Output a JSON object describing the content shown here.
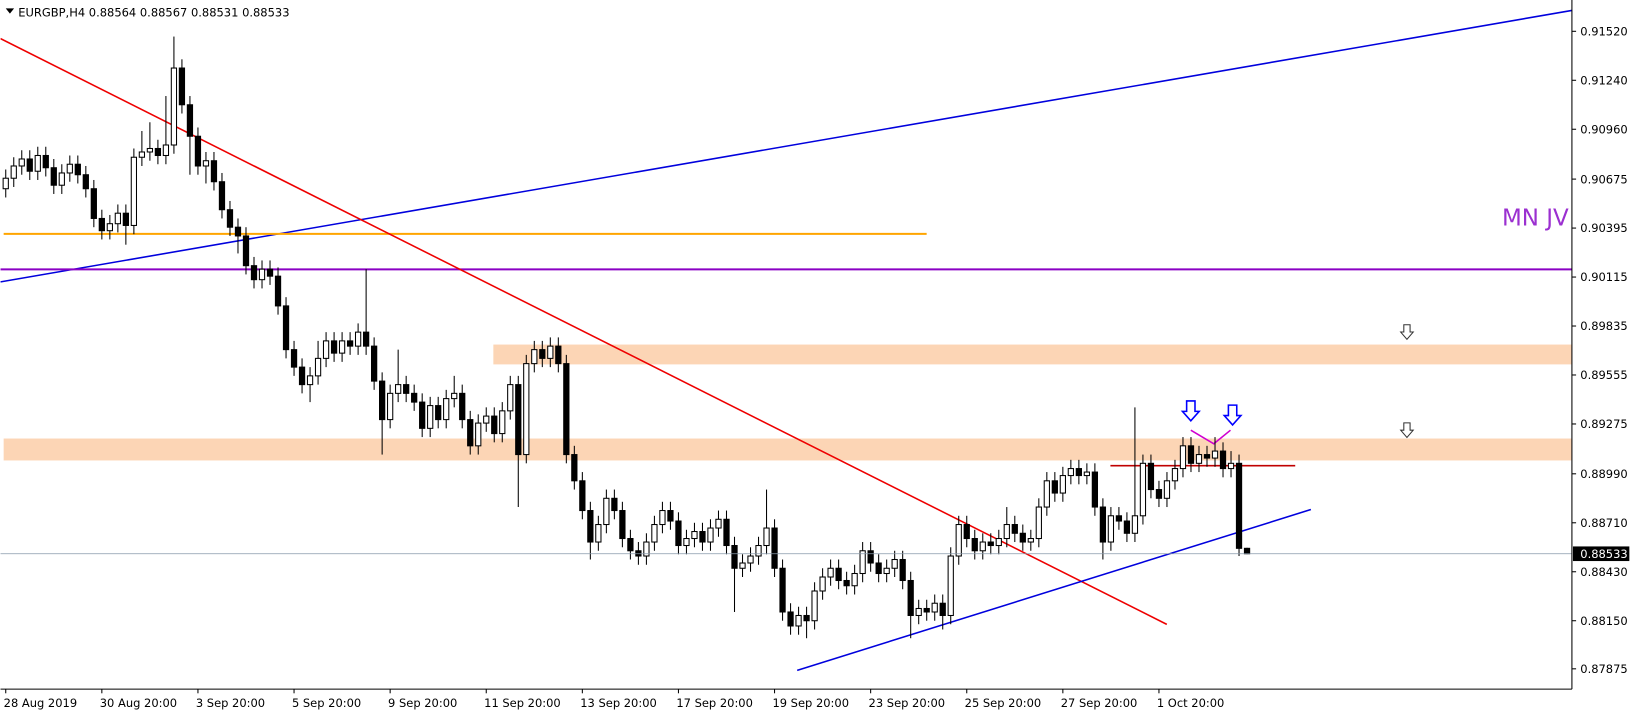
{
  "chart_data": {
    "type": "candlestick",
    "title": "EURGBP,H4",
    "annotation": "MN JV",
    "categories": [
      "28 Aug 2019",
      null,
      null,
      null,
      null,
      null,
      null,
      null,
      null,
      null,
      null,
      null,
      "30 Aug 20:00",
      null,
      null,
      null,
      null,
      null,
      null,
      null,
      null,
      null,
      null,
      null,
      "3 Sep 20:00",
      null,
      null,
      null,
      null,
      null,
      null,
      null,
      null,
      null,
      null,
      null,
      "5 Sep 20:00",
      null,
      null,
      null,
      null,
      null,
      null,
      null,
      null,
      null,
      null,
      null,
      "9 Sep 20:00",
      null,
      null,
      null,
      null,
      null,
      null,
      null,
      null,
      null,
      null,
      null,
      "11 Sep 20:00",
      null,
      null,
      null,
      null,
      null,
      null,
      null,
      null,
      null,
      null,
      null,
      "13 Sep 20:00",
      null,
      null,
      null,
      null,
      null,
      null,
      null,
      null,
      null,
      null,
      null,
      "17 Sep 20:00",
      null,
      null,
      null,
      null,
      null,
      null,
      null,
      null,
      null,
      null,
      null,
      "19 Sep 20:00",
      null,
      null,
      null,
      null,
      null,
      null,
      null,
      null,
      null,
      null,
      null,
      "23 Sep 20:00",
      null,
      null,
      null,
      null,
      null,
      null,
      null,
      null,
      null,
      null,
      null,
      "25 Sep 20:00",
      null,
      null,
      null,
      null,
      null,
      null,
      null,
      null,
      null,
      null,
      null,
      "27 Sep 20:00",
      null,
      null,
      null,
      null,
      null,
      null,
      null,
      null,
      null,
      null,
      null,
      "1 Oct 20:00",
      null,
      null,
      null,
      null,
      null,
      null,
      null,
      null,
      null,
      null,
      null
    ],
    "open": [
      0.9062,
      0.9068,
      0.9075,
      0.9079,
      0.9072,
      0.9081,
      0.9074,
      0.9064,
      0.9071,
      0.9076,
      0.907,
      0.9062,
      0.9045,
      0.9038,
      0.9042,
      0.9048,
      0.9041,
      0.908,
      0.9083,
      0.9085,
      0.9081,
      0.9087,
      0.9131,
      0.911,
      0.9092,
      0.9075,
      0.9078,
      0.9066,
      0.905,
      0.904,
      0.9035,
      0.9018,
      0.901,
      0.9016,
      0.9012,
      0.8995,
      0.897,
      0.896,
      0.895,
      0.8955,
      0.8965,
      0.8975,
      0.8968,
      0.8975,
      0.8972,
      0.898,
      0.8972,
      0.8952,
      0.893,
      0.8945,
      0.895,
      0.8945,
      0.894,
      0.8925,
      0.8938,
      0.893,
      0.8942,
      0.8945,
      0.893,
      0.8915,
      0.8928,
      0.8932,
      0.8922,
      0.8935,
      0.895,
      0.891,
      0.8962,
      0.897,
      0.8965,
      0.8972,
      0.8962,
      0.891,
      0.8895,
      0.8878,
      0.886,
      0.887,
      0.8885,
      0.8878,
      0.8862,
      0.8855,
      0.8852,
      0.886,
      0.887,
      0.8878,
      0.8872,
      0.8858,
      0.8862,
      0.8866,
      0.886,
      0.8868,
      0.8873,
      0.8858,
      0.8845,
      0.8848,
      0.8852,
      0.8858,
      0.8868,
      0.8845,
      0.882,
      0.8812,
      0.8818,
      0.8815,
      0.8832,
      0.884,
      0.8845,
      0.8838,
      0.8835,
      0.8842,
      0.8855,
      0.8848,
      0.8842,
      0.8845,
      0.885,
      0.8838,
      0.8818,
      0.8822,
      0.882,
      0.8825,
      0.8818,
      0.8852,
      0.887,
      0.8862,
      0.8855,
      0.886,
      0.8858,
      0.8862,
      0.887,
      0.8865,
      0.886,
      0.8862,
      0.888,
      0.8895,
      0.8888,
      0.8898,
      0.8902,
      0.8898,
      0.89,
      0.888,
      0.886,
      0.8875,
      0.8872,
      0.8865,
      0.8875,
      0.8905,
      0.889,
      0.8885,
      0.8895,
      0.8902,
      0.8915,
      0.8905,
      0.891,
      0.8908,
      0.8912,
      0.8902,
      0.8905,
      0.88564
    ],
    "high": [
      0.9073,
      0.908,
      0.9084,
      0.9084,
      0.9086,
      0.9086,
      0.9079,
      0.9076,
      0.9081,
      0.9081,
      0.9075,
      0.9067,
      0.905,
      0.9047,
      0.9053,
      0.9053,
      0.9085,
      0.9095,
      0.91,
      0.909,
      0.9115,
      0.9149,
      0.9136,
      0.9115,
      0.9097,
      0.9083,
      0.9083,
      0.9071,
      0.9055,
      0.9045,
      0.904,
      0.9023,
      0.9021,
      0.9021,
      0.9017,
      0.9,
      0.8975,
      0.8965,
      0.896,
      0.8975,
      0.898,
      0.898,
      0.898,
      0.898,
      0.8985,
      0.9016,
      0.8977,
      0.8957,
      0.895,
      0.897,
      0.8955,
      0.895,
      0.8945,
      0.8943,
      0.8943,
      0.8947,
      0.8955,
      0.895,
      0.8935,
      0.8933,
      0.8937,
      0.8937,
      0.894,
      0.8955,
      0.8955,
      0.8967,
      0.8975,
      0.8975,
      0.8977,
      0.8977,
      0.8967,
      0.8915,
      0.89,
      0.8883,
      0.8875,
      0.889,
      0.889,
      0.8883,
      0.8867,
      0.886,
      0.8865,
      0.8875,
      0.8883,
      0.8883,
      0.8877,
      0.8867,
      0.8871,
      0.8871,
      0.8873,
      0.8878,
      0.8878,
      0.8863,
      0.8853,
      0.8857,
      0.8863,
      0.889,
      0.8873,
      0.885,
      0.8825,
      0.8823,
      0.8823,
      0.8837,
      0.8845,
      0.885,
      0.885,
      0.8843,
      0.8847,
      0.886,
      0.886,
      0.8853,
      0.885,
      0.8855,
      0.8855,
      0.8843,
      0.8827,
      0.8827,
      0.883,
      0.883,
      0.8857,
      0.8875,
      0.8875,
      0.8867,
      0.8865,
      0.8865,
      0.8867,
      0.888,
      0.8875,
      0.887,
      0.8867,
      0.8885,
      0.89,
      0.89,
      0.8903,
      0.8907,
      0.8907,
      0.8905,
      0.8905,
      0.8885,
      0.888,
      0.888,
      0.8877,
      0.8937,
      0.891,
      0.891,
      0.8895,
      0.89,
      0.8907,
      0.892,
      0.892,
      0.8915,
      0.8915,
      0.892,
      0.8917,
      0.8912,
      0.891,
      0.88567
    ],
    "low": [
      0.9057,
      0.9063,
      0.907,
      0.9067,
      0.9067,
      0.9069,
      0.9059,
      0.9059,
      0.9066,
      0.9065,
      0.9057,
      0.904,
      0.9033,
      0.9033,
      0.9037,
      0.903,
      0.9036,
      0.9075,
      0.9078,
      0.9076,
      0.9076,
      0.9082,
      0.9105,
      0.907,
      0.907,
      0.9065,
      0.9061,
      0.9045,
      0.9035,
      0.9025,
      0.9013,
      0.9005,
      0.9005,
      0.9007,
      0.899,
      0.8965,
      0.8955,
      0.8945,
      0.894,
      0.895,
      0.896,
      0.8963,
      0.8963,
      0.8967,
      0.8967,
      0.8967,
      0.8947,
      0.891,
      0.8925,
      0.894,
      0.894,
      0.8935,
      0.892,
      0.892,
      0.8925,
      0.8925,
      0.8937,
      0.8925,
      0.891,
      0.891,
      0.8923,
      0.8917,
      0.8917,
      0.893,
      0.888,
      0.8905,
      0.8957,
      0.896,
      0.896,
      0.8957,
      0.8905,
      0.889,
      0.8873,
      0.885,
      0.8855,
      0.8865,
      0.8873,
      0.8857,
      0.885,
      0.8847,
      0.8847,
      0.8855,
      0.8865,
      0.8867,
      0.8853,
      0.8853,
      0.8857,
      0.8855,
      0.8855,
      0.8863,
      0.8853,
      0.882,
      0.884,
      0.8843,
      0.8847,
      0.8853,
      0.884,
      0.8815,
      0.8807,
      0.8807,
      0.8805,
      0.881,
      0.8827,
      0.8835,
      0.8833,
      0.883,
      0.883,
      0.8837,
      0.8843,
      0.8837,
      0.8837,
      0.884,
      0.8833,
      0.8805,
      0.8813,
      0.8815,
      0.8815,
      0.881,
      0.8813,
      0.8847,
      0.8857,
      0.885,
      0.885,
      0.8853,
      0.8853,
      0.8857,
      0.886,
      0.8855,
      0.8855,
      0.8857,
      0.8875,
      0.8883,
      0.8883,
      0.8893,
      0.8893,
      0.8893,
      0.8875,
      0.885,
      0.8855,
      0.8867,
      0.886,
      0.886,
      0.887,
      0.8885,
      0.888,
      0.888,
      0.889,
      0.8897,
      0.89,
      0.89,
      0.8903,
      0.8903,
      0.8897,
      0.8897,
      0.8852,
      0.88531
    ],
    "close": [
      0.9068,
      0.9075,
      0.9079,
      0.9072,
      0.9081,
      0.9074,
      0.9064,
      0.9071,
      0.9076,
      0.907,
      0.9062,
      0.9045,
      0.9038,
      0.9042,
      0.9048,
      0.9041,
      0.908,
      0.9083,
      0.9085,
      0.9081,
      0.9087,
      0.9131,
      0.911,
      0.9092,
      0.9075,
      0.9078,
      0.9066,
      0.905,
      0.904,
      0.9035,
      0.9018,
      0.901,
      0.9016,
      0.9012,
      0.8995,
      0.897,
      0.896,
      0.895,
      0.8955,
      0.8965,
      0.8975,
      0.8968,
      0.8975,
      0.8972,
      0.898,
      0.8972,
      0.8952,
      0.893,
      0.8945,
      0.895,
      0.8945,
      0.894,
      0.8925,
      0.8938,
      0.893,
      0.8942,
      0.8945,
      0.893,
      0.8915,
      0.8928,
      0.8932,
      0.8922,
      0.8935,
      0.895,
      0.891,
      0.8962,
      0.897,
      0.8965,
      0.8972,
      0.8962,
      0.891,
      0.8895,
      0.8878,
      0.886,
      0.887,
      0.8885,
      0.8878,
      0.8862,
      0.8855,
      0.8852,
      0.886,
      0.887,
      0.8878,
      0.8872,
      0.8858,
      0.8862,
      0.8866,
      0.886,
      0.8868,
      0.8873,
      0.8858,
      0.8845,
      0.8848,
      0.8852,
      0.8858,
      0.8868,
      0.8845,
      0.882,
      0.8812,
      0.8818,
      0.8815,
      0.8832,
      0.884,
      0.8845,
      0.8838,
      0.8835,
      0.8842,
      0.8855,
      0.8848,
      0.8842,
      0.8845,
      0.885,
      0.8838,
      0.8818,
      0.8822,
      0.882,
      0.8825,
      0.8818,
      0.8852,
      0.887,
      0.8862,
      0.8855,
      0.886,
      0.8858,
      0.8862,
      0.887,
      0.8865,
      0.886,
      0.8862,
      0.888,
      0.8895,
      0.8888,
      0.8898,
      0.8902,
      0.8898,
      0.89,
      0.888,
      0.886,
      0.8875,
      0.8872,
      0.8865,
      0.8875,
      0.8905,
      0.889,
      0.8885,
      0.8895,
      0.8902,
      0.8915,
      0.8905,
      0.891,
      0.8908,
      0.8912,
      0.8902,
      0.8905,
      0.88564,
      0.88533
    ],
    "ylim": [
      0.87759,
      0.91699
    ],
    "yticks": [
      {
        "value": 0.9152,
        "label": "0.91520"
      },
      {
        "value": 0.9124,
        "label": "0.91240"
      },
      {
        "value": 0.9096,
        "label": "0.90960"
      },
      {
        "value": 0.90675,
        "label": "0.90675"
      },
      {
        "value": 0.90395,
        "label": "0.90395"
      },
      {
        "value": 0.90115,
        "label": "0.90115"
      },
      {
        "value": 0.89835,
        "label": "0.89835"
      },
      {
        "value": 0.89555,
        "label": "0.89555"
      },
      {
        "value": 0.89275,
        "label": "0.89275"
      },
      {
        "value": 0.8899,
        "label": "0.88990"
      },
      {
        "value": 0.8871,
        "label": "0.88710"
      },
      {
        "value": 0.8843,
        "label": "0.88430"
      },
      {
        "value": 0.8815,
        "label": "0.88150"
      },
      {
        "value": 0.87875,
        "label": "0.87875"
      }
    ]
  }
}
